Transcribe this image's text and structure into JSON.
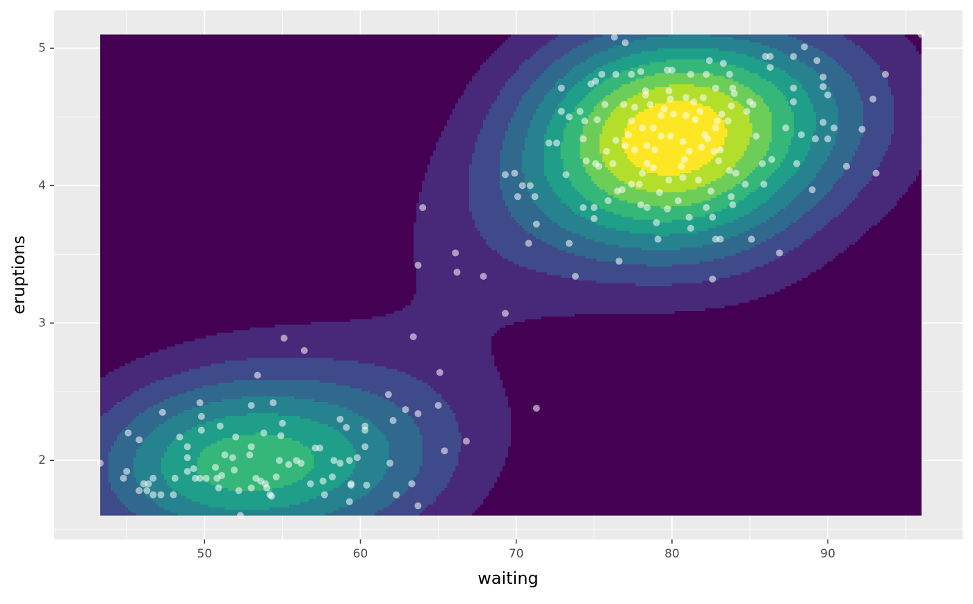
{
  "chart_data": {
    "type": "scatter",
    "xlabel": "waiting",
    "ylabel": "eruptions",
    "xlim": [
      40.35,
      98.65
    ],
    "ylim": [
      1.425,
      5.275
    ],
    "xticks": [
      50,
      60,
      70,
      80,
      90
    ],
    "yticks": [
      2,
      3,
      4,
      5
    ],
    "grid": true,
    "panel_color": "#ebebeb",
    "grid_color": "#ffffff",
    "point_color": "#ffffff",
    "point_opacity": 0.55,
    "density_colors": [
      "#440154",
      "#482878",
      "#3e4a89",
      "#31688e",
      "#26828e",
      "#1f9e89",
      "#35b779",
      "#6dcd59",
      "#b4de2c",
      "#fde725"
    ],
    "x": [
      43.3,
      44.8,
      45.0,
      45.1,
      45.8,
      45.8,
      46.1,
      46.4,
      46.7,
      46.7,
      46.3,
      47.2,
      47.3,
      48.0,
      48.1,
      48.4,
      48.9,
      48.9,
      48.9,
      49.3,
      49.4,
      49.7,
      49.8,
      49.8,
      49.7,
      50.1,
      50.7,
      50.8,
      50.9,
      51.0,
      51.1,
      51.3,
      51.8,
      51.9,
      52.0,
      52.2,
      52.3,
      52.9,
      53.0,
      53.0,
      53.0,
      53.4,
      53.3,
      53.6,
      53.8,
      53.9,
      54.0,
      54.2,
      54.3,
      54.4,
      54.6,
      54.9,
      54.8,
      55.0,
      55.1,
      55.4,
      55.9,
      56.2,
      56.4,
      56.8,
      57.1,
      57.4,
      57.7,
      57.6,
      58.3,
      58.2,
      58.7,
      58.7,
      59.1,
      59.3,
      59.4,
      59.3,
      59.4,
      59.8,
      60.3,
      60.3,
      60.3,
      60.4,
      61.8,
      61.9,
      62.1,
      62.3,
      62.9,
      63.3,
      63.4,
      63.7,
      63.7,
      65.1,
      65.0,
      65.4,
      66.8,
      71.3,
      69.3,
      63.7,
      64.0,
      66.1,
      66.2,
      67.9,
      73.8,
      76.6,
      82.6,
      85.1,
      86.9,
      70.8,
      73.4,
      69.3,
      69.9,
      70.1,
      70.4,
      70.9,
      71.2,
      71.3,
      72.1,
      72.6,
      72.9,
      72.9,
      73.2,
      73.4,
      74.1,
      74.3,
      74.3,
      74.4,
      74.5,
      74.8,
      75.1,
      75.0,
      75.0,
      75.1,
      75.2,
      75.3,
      75.5,
      75.7,
      75.8,
      75.9,
      76.2,
      76.3,
      76.4,
      76.4,
      76.5,
      76.8,
      76.9,
      77.0,
      77.0,
      77.2,
      77.4,
      77.4,
      77.4,
      77.6,
      77.6,
      77.9,
      78.0,
      78.0,
      78.1,
      78.1,
      78.3,
      78.4,
      78.3,
      78.4,
      78.4,
      78.6,
      78.8,
      78.8,
      78.9,
      79.0,
      79.1,
      79.2,
      79.3,
      79.3,
      79.5,
      79.7,
      79.7,
      79.8,
      79.9,
      79.9,
      79.8,
      80.0,
      80.1,
      80.4,
      80.6,
      80.7,
      80.7,
      80.8,
      80.9,
      80.9,
      81.1,
      81.1,
      81.2,
      81.2,
      81.4,
      81.5,
      81.7,
      81.8,
      81.9,
      82.0,
      82.1,
      82.2,
      82.2,
      82.3,
      82.4,
      82.5,
      82.6,
      82.7,
      82.8,
      82.8,
      82.8,
      82.9,
      83.0,
      83.1,
      83.1,
      83.2,
      83.3,
      83.6,
      83.7,
      83.7,
      83.8,
      83.8,
      83.9,
      83.9,
      84.0,
      84.1,
      84.7,
      84.8,
      85.0,
      85.2,
      85.4,
      85.8,
      85.9,
      86.0,
      86.3,
      86.3,
      86.4,
      87.3,
      87.8,
      87.8,
      87.8,
      88.0,
      88.3,
      88.5,
      89.0,
      89.2,
      89.3,
      89.7,
      89.7,
      89.7,
      90.0,
      90.0,
      90.4,
      91.2,
      92.2,
      92.9,
      93.1,
      93.7,
      96.0
    ],
    "y": [
      1.98,
      1.87,
      1.92,
      2.2,
      2.15,
      1.78,
      1.83,
      1.83,
      1.87,
      1.75,
      1.78,
      1.75,
      2.35,
      1.75,
      1.87,
      2.17,
      2.1,
      2.02,
      1.92,
      1.94,
      1.87,
      2.42,
      2.32,
      2.22,
      1.87,
      1.87,
      1.95,
      1.87,
      1.8,
      2.25,
      1.89,
      2.04,
      2.02,
      1.93,
      2.17,
      1.78,
      1.6,
      2.04,
      2.4,
      2.1,
      1.8,
      2.62,
      1.87,
      1.85,
      2.2,
      1.83,
      1.8,
      1.75,
      1.74,
      2.42,
      1.88,
      2.18,
      2.0,
      2.27,
      2.89,
      1.97,
      2.0,
      1.98,
      2.8,
      1.83,
      2.09,
      2.09,
      1.75,
      1.85,
      2.0,
      1.88,
      1.98,
      2.3,
      2.24,
      2.0,
      1.83,
      1.7,
      1.82,
      2.02,
      2.25,
      2.22,
      2.1,
      1.82,
      2.48,
      1.98,
      2.29,
      1.75,
      2.37,
      1.83,
      2.9,
      2.34,
      1.67,
      2.64,
      2.4,
      2.07,
      2.14,
      2.38,
      3.07,
      3.42,
      3.84,
      3.51,
      3.37,
      3.34,
      3.34,
      3.45,
      3.32,
      3.61,
      3.51,
      3.58,
      3.58,
      4.08,
      4.09,
      3.92,
      4.0,
      4.0,
      3.92,
      3.72,
      4.31,
      4.31,
      4.71,
      4.54,
      4.08,
      4.5,
      4.54,
      4.34,
      3.84,
      4.47,
      4.18,
      4.74,
      4.76,
      3.76,
      3.84,
      4.16,
      4.48,
      4.14,
      4.81,
      4.59,
      4.25,
      3.89,
      4.16,
      5.08,
      4.81,
      4.33,
      3.96,
      3.97,
      4.59,
      5.04,
      4.29,
      4.37,
      4.81,
      4.47,
      4.01,
      4.26,
      4.57,
      4.01,
      4.83,
      3.86,
      4.09,
      4.42,
      4.66,
      3.84,
      4.69,
      4.16,
      4.29,
      4.59,
      4.42,
      4.13,
      4.26,
      3.73,
      3.61,
      3.95,
      4.51,
      4.36,
      4.56,
      3.83,
      4.84,
      4.69,
      4.63,
      4.36,
      4.04,
      4.84,
      4.52,
      3.89,
      4.14,
      4.32,
      4.06,
      4.19,
      4.64,
      4.51,
      3.77,
      4.25,
      3.69,
      4.81,
      4.61,
      4.48,
      4.04,
      4.54,
      4.28,
      4.64,
      4.37,
      4.81,
      3.84,
      4.34,
      4.91,
      3.96,
      3.77,
      4.25,
      4.71,
      3.61,
      4.42,
      4.47,
      4.18,
      4.26,
      3.61,
      4.52,
      4.89,
      4.47,
      4.81,
      4.11,
      4.58,
      3.92,
      4.71,
      3.86,
      4.67,
      4.09,
      4.01,
      4.54,
      4.61,
      4.59,
      4.36,
      4.16,
      4.01,
      4.94,
      4.94,
      4.86,
      4.19,
      4.42,
      4.94,
      4.71,
      4.61,
      4.16,
      4.37,
      5.01,
      3.97,
      4.34,
      4.91,
      4.72,
      4.46,
      4.79,
      4.66,
      4.34,
      4.42,
      4.14,
      4.41,
      4.63,
      4.09,
      4.81,
      5.1
    ]
  }
}
